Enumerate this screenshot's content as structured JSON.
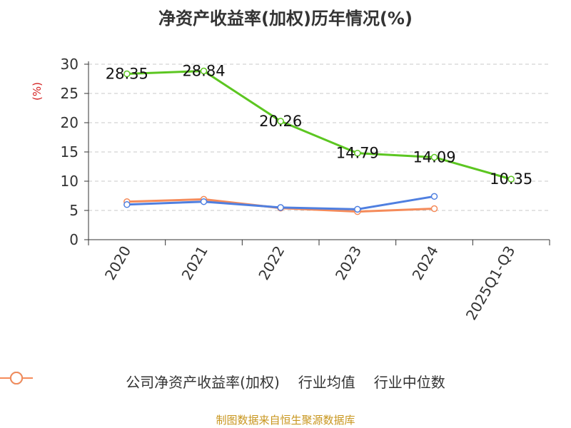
{
  "chart_data": {
    "type": "line",
    "title": "净资产收益率(加权)历年情况(%)",
    "ylabel": "(%)",
    "xlabel": "",
    "categories": [
      "2020",
      "2021",
      "2022",
      "2023",
      "2024",
      "2025Q1-Q3"
    ],
    "ylim": [
      0,
      30
    ],
    "yticks": [
      0,
      5,
      10,
      15,
      20,
      25,
      30
    ],
    "grid": true,
    "legend_position": "bottom",
    "series": [
      {
        "name": "公司净资产收益率(加权)",
        "color": "#5cc621",
        "values": [
          28.35,
          28.84,
          20.26,
          14.79,
          14.09,
          10.35
        ],
        "labels": [
          "28.35",
          "28.84",
          "20.26",
          "14.79",
          "14.09",
          "10.35"
        ]
      },
      {
        "name": "行业均值",
        "color": "#4f7fe0",
        "values": [
          6.0,
          6.5,
          5.5,
          5.2,
          7.4,
          null
        ]
      },
      {
        "name": "行业中位数",
        "color": "#f58b5a",
        "values": [
          6.5,
          6.9,
          5.4,
          4.8,
          5.3,
          null
        ]
      }
    ]
  },
  "footer": {
    "text": "制图数据来自恒生聚源数据库",
    "color": "#c8961e"
  }
}
